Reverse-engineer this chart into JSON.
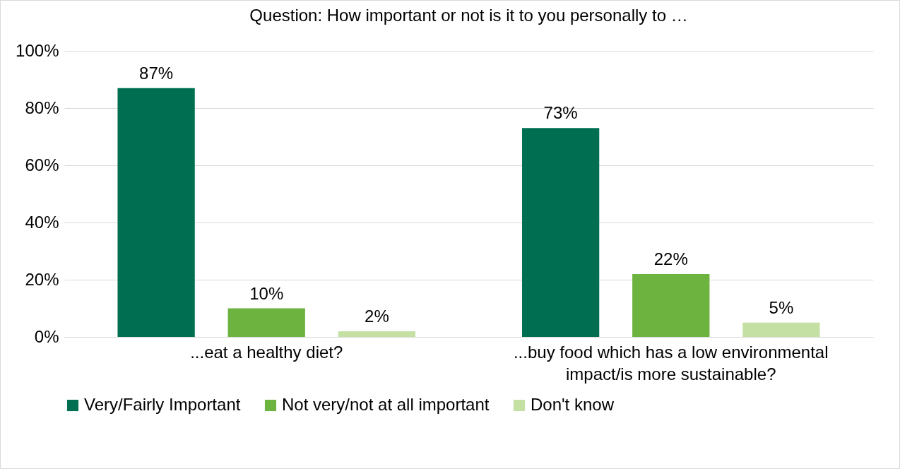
{
  "chart_data": {
    "type": "bar",
    "title": "Question: How important or not is it to you personally to …",
    "categories": [
      "...eat a healthy diet?",
      "...buy food which has a low environmental impact/is more sustainable?"
    ],
    "series": [
      {
        "name": "Very/Fairly Important",
        "color": "#006f51",
        "values": [
          87,
          73
        ],
        "value_labels": [
          "87%",
          "73%"
        ]
      },
      {
        "name": "Not very/not at all important",
        "color": "#6db33f",
        "values": [
          10,
          22
        ],
        "value_labels": [
          "10%",
          "22%"
        ]
      },
      {
        "name": "Don't know",
        "color": "#c5e0a3",
        "values": [
          2,
          5
        ],
        "value_labels": [
          "2%",
          "5%"
        ]
      }
    ],
    "ylim": [
      0,
      100
    ],
    "yticks": [
      {
        "value": 0,
        "label": "0%"
      },
      {
        "value": 20,
        "label": "20%"
      },
      {
        "value": 40,
        "label": "40%"
      },
      {
        "value": 60,
        "label": "60%"
      },
      {
        "value": 80,
        "label": "80%"
      },
      {
        "value": 100,
        "label": "100%"
      }
    ],
    "grid": "y",
    "legend": "bottom"
  }
}
